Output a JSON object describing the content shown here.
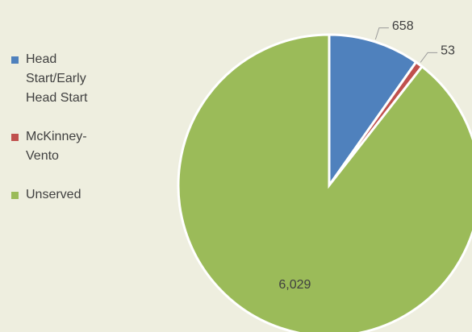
{
  "chart_data": {
    "type": "pie",
    "categories": [
      "Head Start/Early Head Start",
      "McKinney-Vento",
      "Unserved"
    ],
    "values": [
      658,
      53,
      6029
    ],
    "value_labels": [
      "658",
      "53",
      "6,029"
    ],
    "colors": [
      "#4f81bd",
      "#c0504d",
      "#9bbb59"
    ],
    "legend": "left"
  }
}
